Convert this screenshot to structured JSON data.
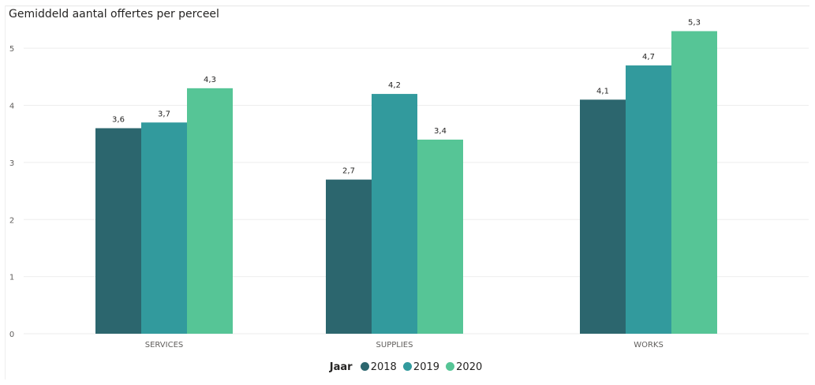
{
  "colors": {
    "series_2018": "#2c666e",
    "series_2019": "#329a9d",
    "series_2020": "#56c596",
    "gridline": "#eeeeee"
  },
  "chart_data": {
    "type": "bar",
    "title": "Gemiddeld aantal offertes per perceel",
    "xlabel": "",
    "ylabel": "",
    "categories": [
      "SERVICES",
      "SUPPLIES",
      "WORKS"
    ],
    "series": [
      {
        "name": "2018",
        "values": [
          3.6,
          2.7,
          4.1
        ],
        "labels": [
          "3,6",
          "2,7",
          "4,1"
        ]
      },
      {
        "name": "2019",
        "values": [
          3.7,
          4.2,
          4.7
        ],
        "labels": [
          "3,7",
          "4,2",
          "4,7"
        ]
      },
      {
        "name": "2020",
        "values": [
          4.3,
          3.4,
          5.3
        ],
        "labels": [
          "4,3",
          "3,4",
          "5,3"
        ]
      }
    ],
    "ylim": [
      0,
      5.5
    ],
    "yticks": [
      0,
      1,
      2,
      3,
      4,
      5
    ],
    "grid": true,
    "legend": {
      "title": "Jaar",
      "placement": "bottom-center"
    }
  }
}
